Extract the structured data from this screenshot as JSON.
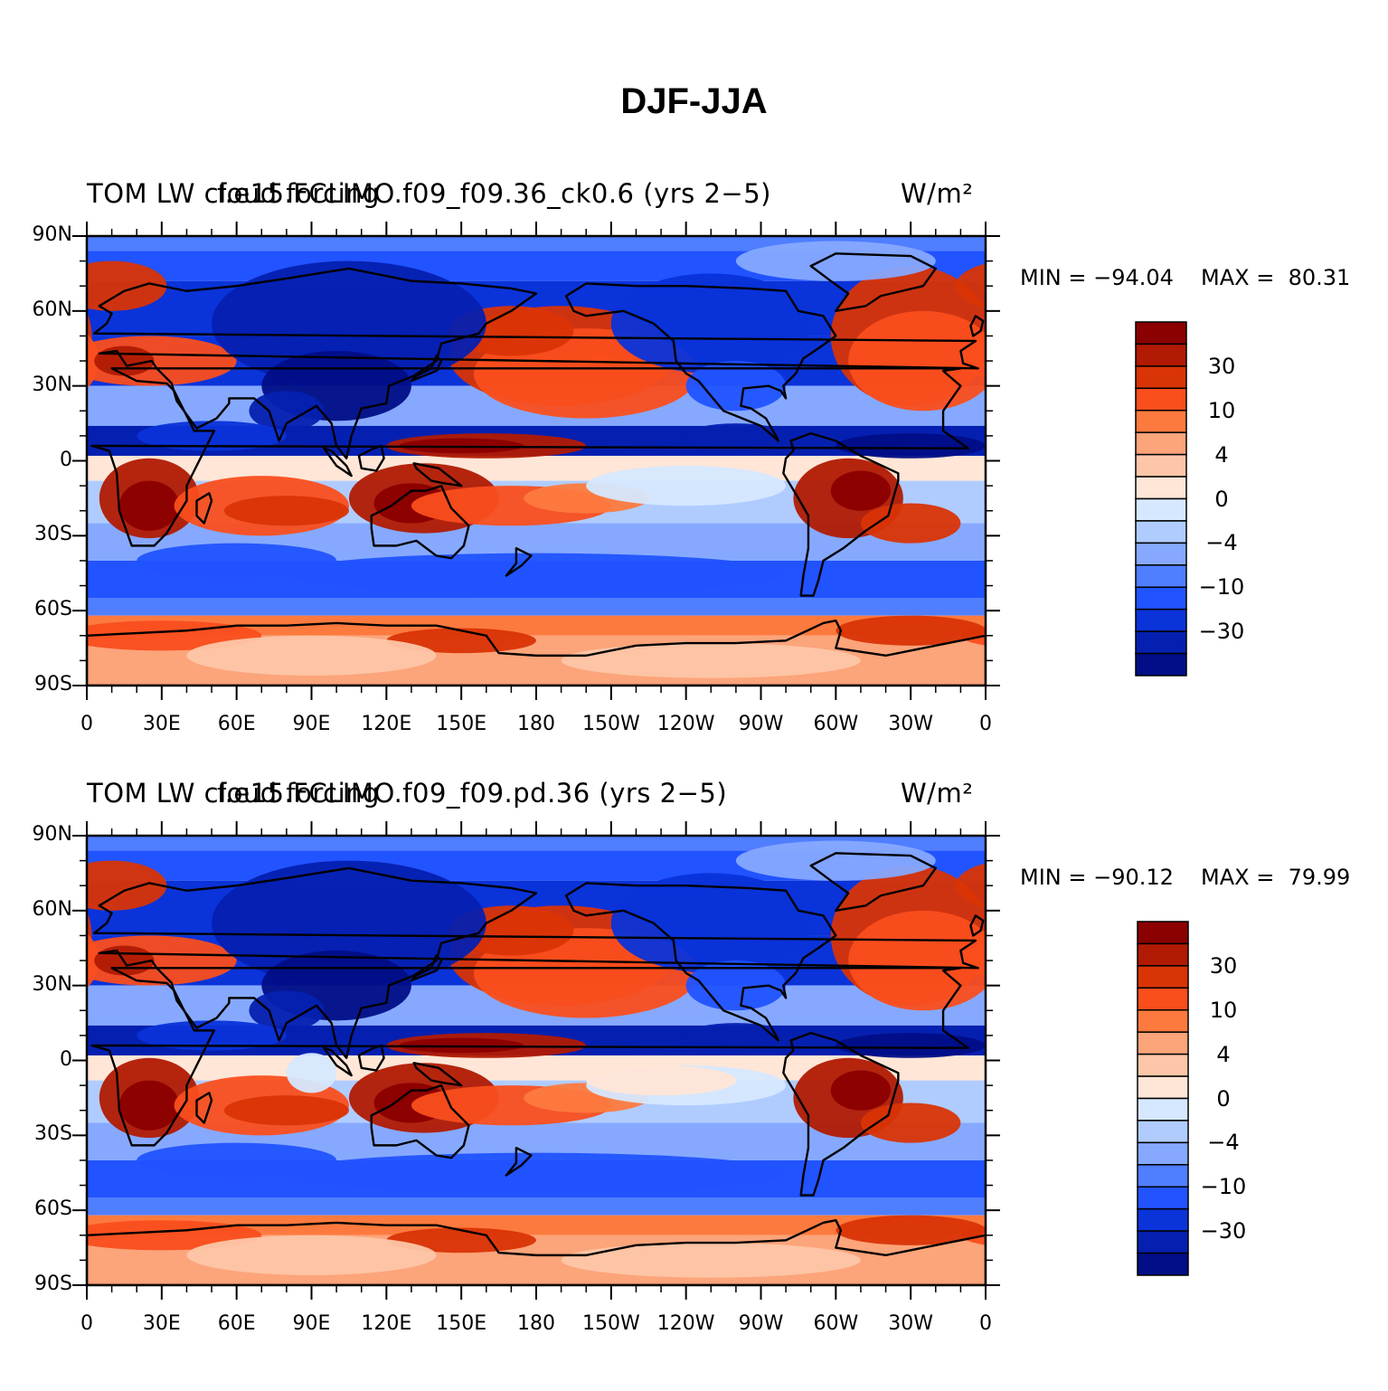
{
  "title": "DJF-JJA",
  "colorbar": {
    "colors": [
      "#8b0000",
      "#b11a03",
      "#d93406",
      "#fa4e1d",
      "#fd7a3e",
      "#fca47a",
      "#fdc6a8",
      "#ffe6d7",
      "#d6e8ff",
      "#b0ccff",
      "#86a9ff",
      "#4f7eff",
      "#2153ff",
      "#0a33d9",
      "#0520b0",
      "#010e87"
    ],
    "labels": [
      "30",
      "10",
      "4",
      "0",
      "−4",
      "−10",
      "−30"
    ]
  },
  "axes": {
    "lat_ticks": [
      "90N",
      "60N",
      "30N",
      "0",
      "30S",
      "60S",
      "90S"
    ],
    "lon_ticks": [
      "0",
      "30E",
      "60E",
      "90E",
      "120E",
      "150E",
      "180",
      "150W",
      "120W",
      "90W",
      "60W",
      "30W",
      "0"
    ]
  },
  "panels": [
    {
      "left_label": "TOM LW cloud forcing",
      "center_label": "f.e15.FCLIMO.f09_f09.36_ck0.6 (yrs 2−5)",
      "units": "W/m²",
      "min_label": "MIN = −94.04",
      "max_label": "MAX =  80.31"
    },
    {
      "left_label": "TOM LW cloud forcing",
      "center_label": "f.e15.FCLIMO.f09_f09.pd.36 (yrs 2−5)",
      "units": "W/m²",
      "min_label": "MIN = −90.12",
      "max_label": "MAX =  79.99"
    }
  ],
  "map_regions": [
    {
      "name": "polar-north-band",
      "color": "#4f7eff"
    },
    {
      "name": "north-atlantic-pos",
      "color": "#d93406"
    },
    {
      "name": "north-pacific-pos",
      "color": "#d93406"
    },
    {
      "name": "asia-neg",
      "color": "#0520b0"
    },
    {
      "name": "itcz-neg",
      "color": "#0a33d9"
    },
    {
      "name": "africa-pos",
      "color": "#b11a03"
    },
    {
      "name": "southamerica-pos",
      "color": "#b11a03"
    },
    {
      "name": "australia-pos",
      "color": "#d93406"
    },
    {
      "name": "southern-ocean-neg",
      "color": "#2153ff"
    },
    {
      "name": "antarctic-pos",
      "color": "#fd7a3e"
    }
  ]
}
